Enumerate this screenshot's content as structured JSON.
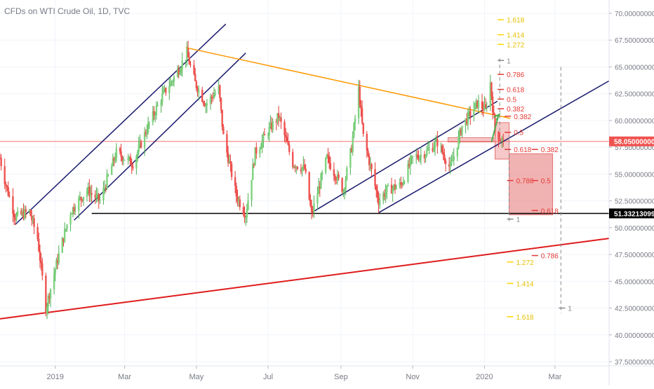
{
  "header": {
    "title": "CFDs on WTI Crude Oil, 1D, TVC"
  },
  "chart_data": {
    "type": "candlestick",
    "title": "CFDs on WTI Crude Oil, 1D, TVC",
    "grid": true,
    "y_axis": {
      "position": "right",
      "range": [
        37.5,
        70.0
      ],
      "ticks": [
        {
          "value": 70.0,
          "label": "70.00000000"
        },
        {
          "value": 67.5,
          "label": "67.50000000"
        },
        {
          "value": 65.0,
          "label": "65.00000000"
        },
        {
          "value": 62.5,
          "label": "62.50000000"
        },
        {
          "value": 60.0,
          "label": "60.00000000"
        },
        {
          "value": 57.5,
          "label": "57.50000000"
        },
        {
          "value": 55.0,
          "label": "55.00000000"
        },
        {
          "value": 52.5,
          "label": "52.50000000"
        },
        {
          "value": 50.0,
          "label": "50.00000000"
        },
        {
          "value": 47.5,
          "label": "47.50000000"
        },
        {
          "value": 45.0,
          "label": "45.00000000"
        },
        {
          "value": 42.5,
          "label": "42.50000000"
        },
        {
          "value": 40.0,
          "label": "40.00000000"
        },
        {
          "value": 37.5,
          "label": "37.50000000"
        }
      ]
    },
    "x_axis": {
      "range": [
        "2018-11-15",
        "2020-04-16"
      ],
      "ticks": [
        {
          "date": "2019-01-01",
          "label": "2019"
        },
        {
          "date": "2019-03-01",
          "label": "Mar"
        },
        {
          "date": "2019-05-01",
          "label": "May"
        },
        {
          "date": "2019-07-01",
          "label": "Jul"
        },
        {
          "date": "2019-09-01",
          "label": "Sep"
        },
        {
          "date": "2019-11-01",
          "label": "Nov"
        },
        {
          "date": "2020-01-01",
          "label": "2020"
        },
        {
          "date": "2020-03-01",
          "label": "Mar"
        }
      ]
    },
    "price_path": [
      [
        "2018-11-15",
        56.5
      ],
      [
        "2018-11-20",
        54.0
      ],
      [
        "2018-11-28",
        51.0
      ],
      [
        "2018-12-10",
        51.5
      ],
      [
        "2018-12-17",
        49.0
      ],
      [
        "2018-12-24",
        42.5
      ],
      [
        "2019-01-04",
        47.5
      ],
      [
        "2019-01-14",
        51.5
      ],
      [
        "2019-01-28",
        53.5
      ],
      [
        "2019-02-08",
        52.5
      ],
      [
        "2019-02-22",
        57.0
      ],
      [
        "2019-03-08",
        56.0
      ],
      [
        "2019-03-21",
        59.5
      ],
      [
        "2019-04-03",
        62.5
      ],
      [
        "2019-04-12",
        64.0
      ],
      [
        "2019-04-23",
        66.2
      ],
      [
        "2019-04-30",
        63.5
      ],
      [
        "2019-05-09",
        61.5
      ],
      [
        "2019-05-20",
        63.0
      ],
      [
        "2019-05-24",
        58.5
      ],
      [
        "2019-06-04",
        53.0
      ],
      [
        "2019-06-12",
        51.2
      ],
      [
        "2019-06-20",
        57.0
      ],
      [
        "2019-07-01",
        59.0
      ],
      [
        "2019-07-10",
        60.4
      ],
      [
        "2019-07-22",
        56.0
      ],
      [
        "2019-08-01",
        55.5
      ],
      [
        "2019-08-07",
        51.2
      ],
      [
        "2019-08-20",
        56.5
      ],
      [
        "2019-09-03",
        53.5
      ],
      [
        "2019-09-10",
        57.5
      ],
      [
        "2019-09-16",
        62.9
      ],
      [
        "2019-09-20",
        58.5
      ],
      [
        "2019-10-03",
        52.5
      ],
      [
        "2019-10-10",
        53.5
      ],
      [
        "2019-10-22",
        54.0
      ],
      [
        "2019-11-01",
        56.5
      ],
      [
        "2019-11-12",
        57.0
      ],
      [
        "2019-11-22",
        58.0
      ],
      [
        "2019-12-03",
        55.5
      ],
      [
        "2019-12-13",
        59.5
      ],
      [
        "2019-12-26",
        61.6
      ],
      [
        "2020-01-02",
        61.0
      ],
      [
        "2020-01-06",
        63.5
      ],
      [
        "2020-01-10",
        59.0
      ],
      [
        "2020-01-17",
        58.0
      ]
    ],
    "trendlines": [
      {
        "name": "upper-channel-a",
        "color": "#1a1a6e",
        "from": [
          "2018-11-28",
          50.3
        ],
        "to": [
          "2019-05-26",
          69.0
        ]
      },
      {
        "name": "upper-channel-b",
        "color": "#1a1a6e",
        "from": [
          "2019-01-17",
          50.7
        ],
        "to": [
          "2019-06-12",
          66.3
        ]
      },
      {
        "name": "lower-channel-a",
        "color": "#1a1a6e",
        "from": [
          "2019-08-07",
          51.4
        ],
        "to": [
          "2020-01-12",
          61.8
        ]
      },
      {
        "name": "lower-channel-b",
        "color": "#1a1a6e",
        "from": [
          "2019-10-03",
          51.4
        ],
        "to": [
          "2020-04-16",
          63.7
        ]
      },
      {
        "name": "descending-resistance",
        "color": "#ff9800",
        "from": [
          "2019-04-22",
          66.8
        ],
        "to": [
          "2020-01-23",
          60.2
        ]
      },
      {
        "name": "long-term-support",
        "color": "#e01b1b",
        "from": [
          "2018-11-15",
          41.5
        ],
        "to": [
          "2020-04-16",
          49.0
        ]
      },
      {
        "name": "support-level",
        "color": "#000000",
        "from": [
          "2019-02-01",
          51.33
        ],
        "to": [
          "2020-04-16",
          51.33
        ]
      }
    ],
    "horizontal_line": {
      "value": 58.05,
      "label": "58.05000000",
      "color": "#ef5350"
    },
    "support_label": {
      "value": 51.33213099,
      "label": "51.33213099"
    },
    "zones": [
      {
        "name": "small-retracement-zone",
        "from": [
          "2020-01-10",
          59.8
        ],
        "to": [
          "2020-01-22",
          56.4
        ],
        "color": "#ef9a9a"
      },
      {
        "name": "large-retracement-zone",
        "from": [
          "2020-01-22",
          56.9
        ],
        "to": [
          "2020-02-28",
          51.2
        ],
        "color": "#e57373"
      },
      {
        "name": "flag-box",
        "from": [
          "2019-12-01",
          58.4
        ],
        "to": [
          "2020-01-09",
          58.0
        ],
        "color": "#ef9a9a"
      }
    ],
    "fib_levels": [
      {
        "label": "1.618",
        "value": 69.4,
        "color": "#ffd600",
        "date": "2020-01-14"
      },
      {
        "label": "1.414",
        "value": 68.0,
        "color": "#ffd600",
        "date": "2020-01-14"
      },
      {
        "label": "1.272",
        "value": 67.1,
        "color": "#ffd600",
        "date": "2020-01-14"
      },
      {
        "label": "1",
        "value": 65.6,
        "color": "#888888",
        "date": "2020-01-14"
      },
      {
        "label": "0.786",
        "value": 64.3,
        "color": "#e53935",
        "date": "2020-01-14"
      },
      {
        "label": "0.618",
        "value": 62.9,
        "color": "#e53935",
        "date": "2020-01-14"
      },
      {
        "label": "0.5",
        "value": 62.0,
        "color": "#e53935",
        "date": "2020-01-14"
      },
      {
        "label": "0.382",
        "value": 61.1,
        "color": "#e53935",
        "date": "2020-01-14"
      },
      {
        "label": "0.382",
        "value": 60.4,
        "color": "#e53935",
        "date": "2020-01-20"
      },
      {
        "label": "0.5",
        "value": 58.9,
        "color": "#e53935",
        "date": "2020-01-20"
      },
      {
        "label": "0.618",
        "value": 57.3,
        "color": "#e53935",
        "date": "2020-01-20"
      },
      {
        "label": "0.786",
        "value": 54.4,
        "color": "#e53935",
        "date": "2020-01-22"
      },
      {
        "label": "1",
        "value": 50.8,
        "color": "#888888",
        "date": "2020-01-22"
      },
      {
        "label": "1.272",
        "value": 46.8,
        "color": "#ffd600",
        "date": "2020-01-22"
      },
      {
        "label": "1.414",
        "value": 44.8,
        "color": "#ffd600",
        "date": "2020-01-22"
      },
      {
        "label": "1.618",
        "value": 41.7,
        "color": "#ffd600",
        "date": "2020-01-22"
      },
      {
        "label": "0.382",
        "value": 57.3,
        "color": "#e53935",
        "date": "2020-02-12"
      },
      {
        "label": "0.5",
        "value": 54.4,
        "color": "#e53935",
        "date": "2020-02-12"
      },
      {
        "label": "0.618",
        "value": 51.6,
        "color": "#e53935",
        "date": "2020-02-12"
      },
      {
        "label": "0.786",
        "value": 47.4,
        "color": "#e53935",
        "date": "2020-02-12"
      },
      {
        "label": "1",
        "value": 42.5,
        "color": "#888888",
        "date": "2020-03-06"
      }
    ],
    "projection_arrow": {
      "from": [
        "2020-01-07",
        58.0
      ],
      "to": [
        "2020-01-13",
        60.5
      ],
      "color": "#4caf50"
    },
    "colors": {
      "up": "#26a69a",
      "up_body": "#7ed37e",
      "down": "#ef5350",
      "grid": "#f0f3fa",
      "axis_text": "#787b86"
    }
  }
}
